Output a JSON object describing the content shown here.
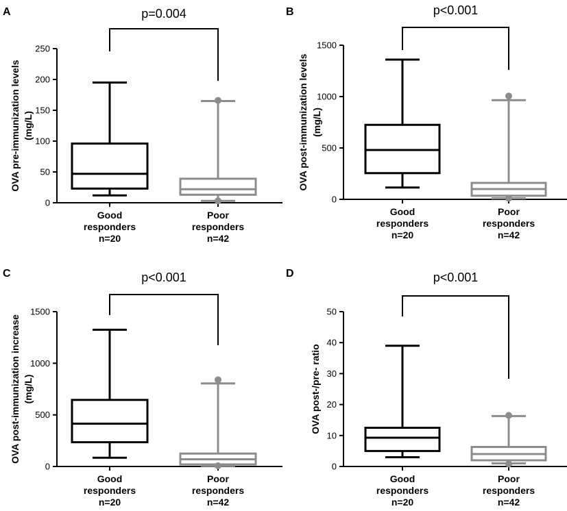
{
  "chart_data": [
    {
      "type": "box",
      "panel": "A",
      "pvalue": "p=0.004",
      "ylabel_line1": "OVA pre-immunization levels",
      "ylabel_line2": "(mg/L)",
      "ylim": [
        0,
        250
      ],
      "yticks": [
        0,
        50,
        100,
        150,
        200,
        250
      ],
      "ytick_labels": [
        "0",
        "50",
        "100",
        "150",
        "200",
        "250"
      ],
      "groups": [
        {
          "label_lines": [
            "Good",
            "responders",
            "n=20"
          ],
          "color": "#000000",
          "min": 12,
          "q1": 23,
          "median": 47,
          "q3": 96,
          "max": 195,
          "outliers": []
        },
        {
          "label_lines": [
            "Poor",
            "responders",
            "n=42"
          ],
          "color": "#8c8c8c",
          "min": 3,
          "q1": 13,
          "median": 22,
          "q3": 39,
          "max": 165,
          "outliers": [
            166,
            3
          ]
        }
      ]
    },
    {
      "type": "box",
      "panel": "B",
      "pvalue": "p<0.001",
      "ylabel_line1": "OVA post-immunization levels",
      "ylabel_line2": "(mg/L)",
      "ylim": [
        0,
        1500
      ],
      "yticks": [
        0,
        500,
        1000,
        1500
      ],
      "ytick_labels": [
        "0",
        "500",
        "1000",
        "1500"
      ],
      "groups": [
        {
          "label_lines": [
            "Good",
            "responders",
            "n=20"
          ],
          "color": "#000000",
          "min": 115,
          "q1": 255,
          "median": 480,
          "q3": 725,
          "max": 1360,
          "outliers": []
        },
        {
          "label_lines": [
            "Poor",
            "responders",
            "n=42"
          ],
          "color": "#8c8c8c",
          "min": 10,
          "q1": 35,
          "median": 100,
          "q3": 160,
          "max": 965,
          "outliers": [
            1005,
            10
          ]
        }
      ]
    },
    {
      "type": "box",
      "panel": "C",
      "pvalue": "p<0.001",
      "ylabel_line1": "OVA post-immunization increase",
      "ylabel_line2": "(mg/L)",
      "ylim": [
        0,
        1500
      ],
      "yticks": [
        0,
        500,
        1000,
        1500
      ],
      "ytick_labels": [
        "0",
        "500",
        "1000",
        "1500"
      ],
      "groups": [
        {
          "label_lines": [
            "Good",
            "responders",
            "n=20"
          ],
          "color": "#000000",
          "min": 85,
          "q1": 235,
          "median": 415,
          "q3": 645,
          "max": 1325,
          "outliers": []
        },
        {
          "label_lines": [
            "Poor",
            "responders",
            "n=42"
          ],
          "color": "#8c8c8c",
          "min": 5,
          "q1": 20,
          "median": 70,
          "q3": 125,
          "max": 805,
          "outliers": [
            840,
            -5
          ]
        }
      ]
    },
    {
      "type": "box",
      "panel": "D",
      "pvalue": "p<0.001",
      "ylabel_line1": "OVA post-/pre- ratio",
      "ylabel_line2": "",
      "ylim": [
        0,
        50
      ],
      "yticks": [
        0,
        10,
        20,
        30,
        40,
        50
      ],
      "ytick_labels": [
        "0",
        "10",
        "20",
        "30",
        "40",
        "50"
      ],
      "groups": [
        {
          "label_lines": [
            "Good",
            "responders",
            "n=20"
          ],
          "color": "#000000",
          "min": 3,
          "q1": 5,
          "median": 9.3,
          "q3": 12.5,
          "max": 39,
          "outliers": []
        },
        {
          "label_lines": [
            "Poor",
            "responders",
            "n=42"
          ],
          "color": "#8c8c8c",
          "min": 1,
          "q1": 2,
          "median": 4,
          "q3": 6.3,
          "max": 16.3,
          "outliers": [
            16.5,
            0.8
          ]
        }
      ]
    }
  ]
}
